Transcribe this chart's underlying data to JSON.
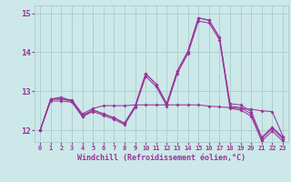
{
  "xlabel": "Windchill (Refroidissement éolien,°C)",
  "x": [
    0,
    1,
    2,
    3,
    4,
    5,
    6,
    7,
    8,
    9,
    10,
    11,
    12,
    13,
    14,
    15,
    16,
    17,
    18,
    19,
    20,
    21,
    22,
    23
  ],
  "line1": [
    12.0,
    12.8,
    12.8,
    12.78,
    12.42,
    12.56,
    12.63,
    12.63,
    12.63,
    12.65,
    12.65,
    12.65,
    12.65,
    12.65,
    12.65,
    12.65,
    12.62,
    12.6,
    12.58,
    12.56,
    12.54,
    12.5,
    12.48,
    11.85
  ],
  "line2": [
    12.0,
    12.8,
    12.85,
    12.75,
    12.35,
    12.52,
    12.42,
    12.32,
    12.18,
    12.62,
    13.45,
    13.18,
    12.68,
    13.52,
    14.02,
    14.88,
    14.82,
    14.38,
    12.68,
    12.65,
    12.48,
    11.82,
    12.08,
    11.82
  ],
  "line3": [
    12.0,
    12.8,
    12.8,
    12.75,
    12.38,
    12.52,
    12.42,
    12.32,
    12.18,
    12.62,
    13.45,
    13.18,
    12.68,
    13.52,
    14.02,
    14.88,
    14.82,
    14.38,
    12.62,
    12.58,
    12.42,
    11.78,
    12.05,
    11.78
  ],
  "line4": [
    12.0,
    12.75,
    12.75,
    12.72,
    12.35,
    12.48,
    12.38,
    12.28,
    12.14,
    12.58,
    13.38,
    13.12,
    12.62,
    13.46,
    13.96,
    14.8,
    14.75,
    14.32,
    12.56,
    12.52,
    12.36,
    11.72,
    11.98,
    11.72
  ],
  "ylim": [
    11.7,
    15.2
  ],
  "yticks": [
    12,
    13,
    14,
    15
  ],
  "bg_color": "#cce8e8",
  "line_color": "#993399",
  "grid_color": "#aacccc"
}
